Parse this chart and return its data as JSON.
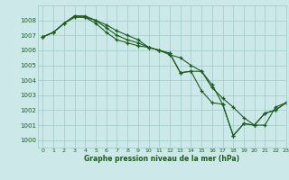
{
  "xlabel": "Graphe pression niveau de la mer (hPa)",
  "xlim": [
    -0.5,
    23
  ],
  "ylim": [
    999.5,
    1009.0
  ],
  "yticks": [
    1000,
    1001,
    1002,
    1003,
    1004,
    1005,
    1006,
    1007,
    1008
  ],
  "xticks": [
    0,
    1,
    2,
    3,
    4,
    5,
    6,
    7,
    8,
    9,
    10,
    11,
    12,
    13,
    14,
    15,
    16,
    17,
    18,
    19,
    20,
    21,
    22,
    23
  ],
  "background_color": "#cce8e8",
  "grid_color": "#99cccc",
  "line_color": "#1e5c1e",
  "line1": [
    1006.9,
    1007.2,
    1007.8,
    1008.2,
    1008.2,
    1008.0,
    1007.7,
    1007.3,
    1007.0,
    1006.7,
    1006.2,
    1006.0,
    1005.7,
    1005.5,
    1005.0,
    1004.6,
    1003.5,
    1002.8,
    1002.2,
    1001.5,
    1001.0,
    1001.0,
    1002.2,
    1002.5
  ],
  "line2": [
    1006.9,
    1007.2,
    1007.8,
    1008.3,
    1008.3,
    1008.0,
    1007.5,
    1007.0,
    1006.7,
    1006.5,
    1006.2,
    1006.0,
    1005.8,
    1004.5,
    1004.6,
    1004.6,
    1003.7,
    1002.4,
    1000.3,
    1001.1,
    1001.0,
    1001.8,
    1002.0,
    1002.5
  ],
  "line3": [
    1006.9,
    1007.2,
    1007.8,
    1008.3,
    1008.2,
    1007.8,
    1007.2,
    1006.7,
    1006.5,
    1006.3,
    1006.2,
    1006.0,
    1005.8,
    1004.5,
    1004.6,
    1003.3,
    1002.5,
    1002.4,
    1000.3,
    1001.1,
    1001.0,
    1001.8,
    1002.0,
    1002.5
  ]
}
